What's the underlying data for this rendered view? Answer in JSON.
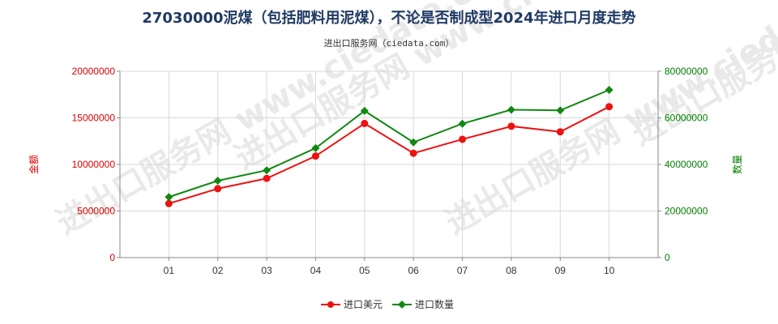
{
  "chart_data": {
    "type": "line",
    "title": "27030000泥煤（包括肥料用泥煤），不论是否制成型2024年进口月度走势",
    "subtitle": "进出口服务网（ciedata.com）",
    "watermark": "进出口服务网 www.ciedata.com",
    "categories": [
      "01",
      "02",
      "03",
      "04",
      "05",
      "06",
      "07",
      "08",
      "09",
      "10"
    ],
    "y_left": {
      "label": "金额",
      "ylim": [
        0,
        20000000
      ],
      "ticks": [
        "0",
        "5000000",
        "10000000",
        "15000000",
        "20000000"
      ],
      "color": "#dd0000"
    },
    "y_right": {
      "label": "数量",
      "ylim": [
        0,
        80000000
      ],
      "ticks": [
        "0",
        "20000000",
        "40000000",
        "60000000",
        "80000000"
      ],
      "color": "#008000"
    },
    "series": [
      {
        "name": "进口美元",
        "axis": "left",
        "color": "#ee1111",
        "marker": "circle",
        "values": [
          5800000,
          7400000,
          8500000,
          10900000,
          14400000,
          11200000,
          12700000,
          14100000,
          13500000,
          16200000
        ]
      },
      {
        "name": "进口数量",
        "axis": "right",
        "color": "#118811",
        "marker": "diamond",
        "values": [
          26000000,
          33000000,
          37500000,
          47000000,
          63000000,
          49500000,
          57500000,
          63500000,
          63200000,
          72000000
        ]
      }
    ],
    "grid": true,
    "legend_position": "bottom-center"
  }
}
